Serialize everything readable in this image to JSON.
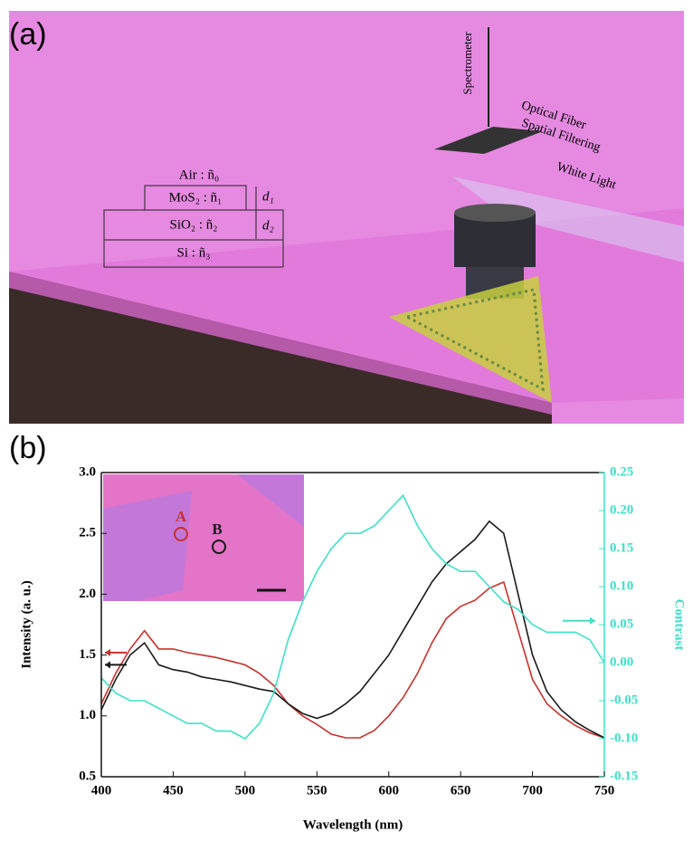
{
  "panel_a": {
    "label": "(a)",
    "spectrometer": "Spectrometer",
    "fiber": "Optical Fiber",
    "filtering": "Spatial Filtering",
    "light": "White Light",
    "layers": [
      "Air : ñ₀",
      "MoS₂ : ñ₁",
      "SiO₂ : ñ₂",
      "Si : ñ₃"
    ],
    "d1": "d₁",
    "d2": "d₂"
  },
  "chart_data": {
    "type": "line",
    "panel_label": "(b)",
    "xlabel": "Wavelength (nm)",
    "ylabel": "Intensity (a. u.)",
    "y2label": "Contrast",
    "x": [
      400,
      410,
      420,
      430,
      440,
      450,
      460,
      470,
      480,
      490,
      500,
      510,
      520,
      530,
      540,
      550,
      560,
      570,
      580,
      590,
      600,
      610,
      620,
      630,
      640,
      650,
      660,
      670,
      680,
      690,
      700,
      710,
      720,
      730,
      740,
      750
    ],
    "series": [
      {
        "name": "A",
        "color": "#c8302c",
        "values": [
          1.1,
          1.35,
          1.55,
          1.7,
          1.55,
          1.55,
          1.52,
          1.5,
          1.48,
          1.45,
          1.42,
          1.35,
          1.25,
          1.1,
          1.0,
          0.93,
          0.85,
          0.82,
          0.82,
          0.88,
          1.0,
          1.15,
          1.35,
          1.6,
          1.8,
          1.9,
          1.95,
          2.05,
          2.1,
          1.7,
          1.3,
          1.1,
          1.0,
          0.92,
          0.86,
          0.82
        ]
      },
      {
        "name": "B",
        "color": "#1a1a1a",
        "values": [
          1.05,
          1.3,
          1.5,
          1.6,
          1.42,
          1.38,
          1.36,
          1.32,
          1.3,
          1.28,
          1.25,
          1.22,
          1.2,
          1.1,
          1.02,
          0.98,
          1.02,
          1.1,
          1.2,
          1.35,
          1.5,
          1.7,
          1.9,
          2.1,
          2.25,
          2.35,
          2.45,
          2.6,
          2.5,
          2.0,
          1.5,
          1.2,
          1.05,
          0.95,
          0.88,
          0.82
        ]
      },
      {
        "color": "#3ee0c8",
        "axis": "y2",
        "values": [
          -0.02,
          -0.04,
          -0.05,
          -0.05,
          -0.06,
          -0.07,
          -0.08,
          -0.08,
          -0.09,
          -0.09,
          -0.1,
          -0.08,
          -0.04,
          0.03,
          0.08,
          0.12,
          0.15,
          0.17,
          0.17,
          0.18,
          0.2,
          0.22,
          0.18,
          0.15,
          0.13,
          0.12,
          0.12,
          0.1,
          0.08,
          0.07,
          0.05,
          0.04,
          0.04,
          0.04,
          0.03,
          0.0
        ]
      }
    ],
    "xlim": [
      400,
      750
    ],
    "xticks": [
      400,
      450,
      500,
      550,
      600,
      650,
      700,
      750
    ],
    "ylim": [
      0.5,
      3.0
    ],
    "yticks": [
      0.5,
      {
        "value": 1,
        "label": "1.0"
      },
      1.5,
      {
        "value": 2,
        "label": "2.0"
      },
      2.5,
      {
        "value": 3,
        "label": "3.0"
      }
    ],
    "y2lim": [
      -0.15,
      0.25
    ],
    "y2ticks": [
      -0.15,
      {
        "value": -0.1,
        "label": "-0.10"
      },
      -0.05,
      {
        "value": 0,
        "label": "0.00"
      },
      0.05,
      {
        "value": 0.1,
        "label": "0.10"
      },
      0.15,
      {
        "value": 0.2,
        "label": "0.20"
      },
      0.25
    ]
  }
}
